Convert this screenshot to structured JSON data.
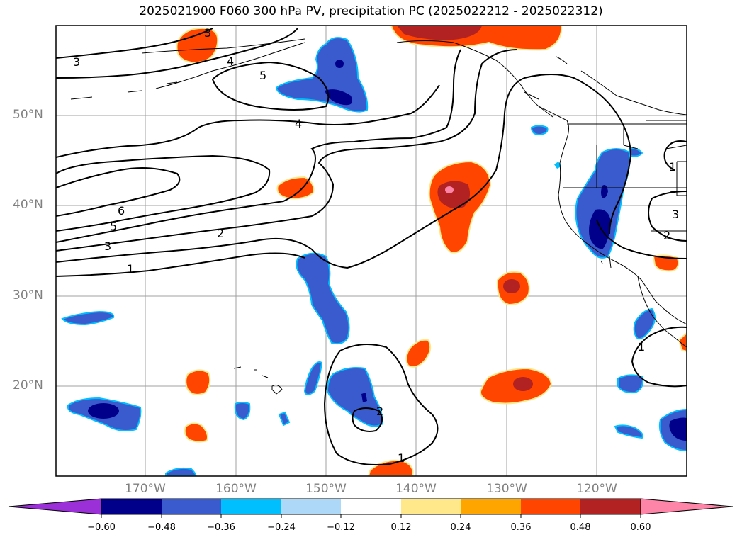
{
  "title": "2025021900 F060 300 hPa PV, precipitation PC (2025022212 - 2025022312)",
  "map": {
    "projection": "PlateCarree",
    "lon_labels": [
      "170°W",
      "160°W",
      "150°W",
      "140°W",
      "130°W",
      "120°W"
    ],
    "lat_labels": [
      "50°N",
      "40°N",
      "30°N",
      "20°N"
    ],
    "contour_labels": [
      "3",
      "4",
      "5",
      "4",
      "6",
      "5",
      "3",
      "2",
      "1",
      "1",
      "2",
      "3",
      "2",
      "1",
      "2",
      "1",
      "3"
    ],
    "contour_color": "#000000",
    "coastline_color": "#000000",
    "gridline_color": "#a0a0a0"
  },
  "colorbar": {
    "ticks": [
      "−0.60",
      "−0.48",
      "−0.36",
      "−0.24",
      "−0.12",
      "0.12",
      "0.24",
      "0.36",
      "0.48",
      "0.60"
    ],
    "colors": [
      "#9b30d9",
      "#00008b",
      "#3a5bcd",
      "#00bfff",
      "#add8f7",
      "#ffffff",
      "#ffe88a",
      "#ffa500",
      "#ff4500",
      "#b22222",
      "#ff85a8"
    ]
  }
}
